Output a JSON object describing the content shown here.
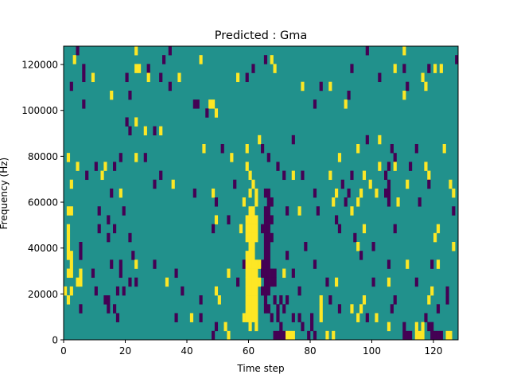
{
  "chart_data": {
    "type": "heatmap",
    "title": "Predicted : Gma",
    "xlabel": "Time step",
    "ylabel": "Frequency (Hz)",
    "xlim": [
      0,
      128
    ],
    "ylim": [
      0,
      128000
    ],
    "xticks": [
      0,
      20,
      40,
      60,
      80,
      100,
      120
    ],
    "yticks": [
      0,
      20000,
      40000,
      60000,
      80000,
      100000,
      120000
    ],
    "n_time_steps": 128,
    "n_freq_rows": 33,
    "colormap": {
      "low": "#440154",
      "mid": "#21918c",
      "high": "#fde725"
    },
    "value_encoding": {
      "background": 0.5,
      "d": 0,
      "y": 1
    },
    "rows_top_to_bottom": [
      {
        "d": [
          4,
          34,
          98
        ],
        "y": [
          23,
          110
        ]
      },
      {
        "d": [
          32,
          65,
          127
        ],
        "y": [
          3,
          44,
          67
        ]
      },
      {
        "d": [
          6,
          27,
          61,
          93,
          110,
          118
        ],
        "y": [
          23,
          24,
          68,
          107,
          120,
          122
        ]
      },
      {
        "d": [
          6,
          20,
          31,
          59,
          102
        ],
        "y": [
          9,
          27,
          37,
          56,
          116
        ]
      },
      {
        "d": [
          2,
          34,
          83,
          111
        ],
        "y": [
          77,
          86,
          117
        ]
      },
      {
        "d": [
          21,
          92
        ],
        "y": [
          15,
          110
        ]
      },
      {
        "d": [
          6,
          42,
          43,
          81
        ],
        "y": [
          47,
          48,
          91
        ]
      },
      {
        "d": [
          46
        ],
        "y": [
          49
        ]
      },
      {
        "d": [
          20
        ],
        "y": [
          23
        ]
      },
      {
        "d": [
          21,
          29
        ],
        "y": [
          26,
          31
        ]
      },
      {
        "d": [
          74,
          98
        ],
        "y": [
          63,
          102
        ]
      },
      {
        "d": [
          51,
          64,
          106,
          114
        ],
        "y": [
          45,
          59,
          95,
          123
        ]
      },
      {
        "d": [
          18,
          26,
          66,
          107
        ],
        "y": [
          1,
          23,
          54,
          89
        ]
      },
      {
        "d": [
          10,
          16,
          69,
          105,
          112
        ],
        "y": [
          4,
          13,
          59,
          102,
          107,
          117
        ]
      },
      {
        "d": [
          7,
          31,
          71,
          77,
          93,
          104
        ],
        "y": [
          12,
          60,
          74,
          86,
          97,
          118
        ]
      },
      {
        "d": [
          29,
          55,
          90,
          105,
          118
        ],
        "y": [
          2,
          35,
          61,
          99,
          111,
          125
        ]
      },
      {
        "d": [
          15,
          42,
          65,
          66,
          81,
          92,
          104,
          105
        ],
        "y": [
          18,
          48,
          60,
          62,
          88,
          96,
          101,
          126
        ]
      },
      {
        "d": [
          49,
          66,
          67,
          91,
          105,
          115
        ],
        "y": [
          58,
          62,
          87,
          95,
          108
        ]
      },
      {
        "d": [
          11,
          19,
          65,
          66,
          72,
          82,
          126
        ],
        "y": [
          1,
          2,
          60,
          61,
          76,
          93
        ]
      },
      {
        "d": [
          14,
          53,
          65,
          66,
          67,
          88
        ],
        "y": [
          49,
          59,
          60,
          61,
          62
        ]
      },
      {
        "d": [
          11,
          16,
          48,
          64,
          65,
          66,
          89,
          107
        ],
        "y": [
          1,
          57,
          59,
          60,
          61,
          62,
          97,
          121
        ]
      },
      {
        "d": [
          14,
          21,
          65,
          66,
          67,
          94
        ],
        "y": [
          1,
          59,
          60,
          61,
          62,
          120
        ]
      },
      {
        "d": [
          5,
          65,
          66,
          78,
          100
        ],
        "y": [
          1,
          60,
          61,
          95,
          126
        ]
      },
      {
        "d": [
          5,
          22,
          65,
          66,
          72,
          96
        ],
        "y": [
          1,
          2,
          59,
          60,
          61
        ]
      },
      {
        "d": [
          15,
          18,
          29,
          58,
          64,
          65,
          66,
          81,
          105,
          119
        ],
        "y": [
          2,
          23,
          59,
          60,
          61,
          62,
          63,
          111,
          121
        ]
      },
      {
        "d": [
          9,
          18,
          36,
          64,
          65,
          66,
          67,
          68,
          74
        ],
        "y": [
          1,
          2,
          5,
          53,
          59,
          60,
          61,
          62,
          71
        ]
      },
      {
        "d": [
          21,
          23,
          56,
          65,
          66,
          67,
          68,
          85,
          100,
          114
        ],
        "y": [
          4,
          5,
          33,
          59,
          60,
          61,
          62,
          63,
          88,
          105
        ]
      },
      {
        "d": [
          10,
          17,
          19,
          38,
          64,
          65,
          66,
          76,
          124
        ],
        "y": [
          0,
          2,
          49,
          59,
          60,
          61,
          62,
          119
        ]
      },
      {
        "d": [
          13,
          14,
          44,
          65,
          68,
          70,
          72,
          86,
          107,
          124
        ],
        "y": [
          1,
          50,
          59,
          60,
          61,
          62,
          83,
          97,
          118
        ]
      },
      {
        "d": [
          5,
          14,
          16,
          65,
          66,
          69,
          71,
          89,
          106,
          121
        ],
        "y": [
          59,
          60,
          61,
          62,
          83,
          93,
          96
        ]
      },
      {
        "d": [
          17,
          36,
          44,
          67,
          69,
          74,
          76,
          80,
          98,
          117
        ],
        "y": [
          41,
          58,
          59,
          60,
          61,
          62,
          83,
          95,
          101
        ]
      },
      {
        "d": [
          49,
          70,
          77,
          80,
          110,
          118,
          119
        ],
        "y": [
          52,
          60,
          62,
          105,
          114,
          116
        ]
      },
      {
        "d": [
          48,
          68,
          69,
          70,
          71,
          79,
          81,
          110,
          111,
          112,
          119,
          120,
          121,
          122
        ],
        "y": [
          53,
          72,
          73,
          74,
          85,
          87,
          114,
          115,
          116,
          124,
          125
        ]
      }
    ]
  }
}
